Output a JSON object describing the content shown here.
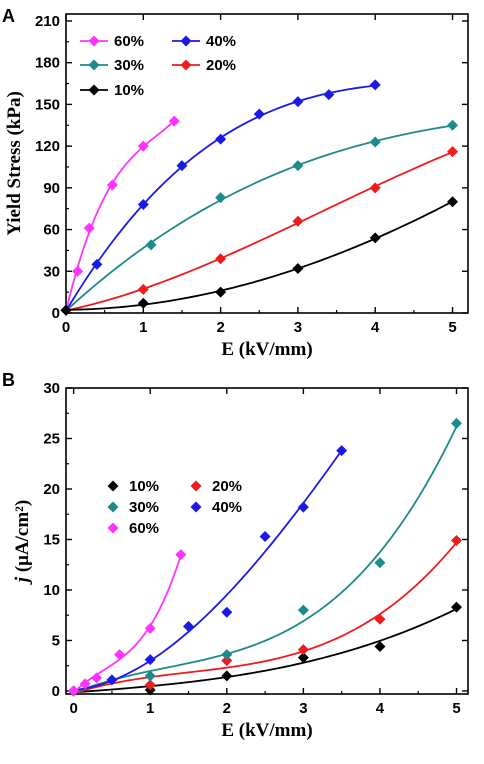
{
  "chart_data": [
    {
      "type": "scatter",
      "panel_label": "A",
      "xlabel": "E (kV/mm)",
      "ylabel": "Yield Stress (kPa)",
      "xlim": [
        0,
        5.2
      ],
      "ylim": [
        0,
        215
      ],
      "xticks": [
        0,
        1,
        2,
        3,
        4,
        5
      ],
      "yticks": [
        0,
        30,
        60,
        90,
        120,
        150,
        180,
        210
      ],
      "legend_placement": "top-left",
      "series": [
        {
          "name": "60%",
          "color": "#ff33ff",
          "x": [
            0,
            0.15,
            0.3,
            0.6,
            1.0,
            1.4
          ],
          "y": [
            2,
            30,
            61,
            92,
            120,
            138
          ]
        },
        {
          "name": "40%",
          "color": "#1a1ae6",
          "x": [
            0,
            0.4,
            1.0,
            1.5,
            2.0,
            2.5,
            3.0,
            3.4,
            4.0
          ],
          "y": [
            2,
            35,
            78,
            106,
            125,
            143,
            152,
            157,
            164
          ]
        },
        {
          "name": "30%",
          "color": "#1f8a8a",
          "x": [
            0,
            1.1,
            2.0,
            3.0,
            4.0,
            5.0
          ],
          "y": [
            2,
            49,
            83,
            106,
            123,
            135
          ]
        },
        {
          "name": "20%",
          "color": "#ee1c1c",
          "x": [
            0,
            1.0,
            2.0,
            3.0,
            4.0,
            5.0
          ],
          "y": [
            2,
            17,
            39,
            66,
            90,
            116
          ]
        },
        {
          "name": "10%",
          "color": "#000000",
          "x": [
            0,
            1.0,
            2.0,
            3.0,
            4.0,
            5.0
          ],
          "y": [
            2,
            7,
            15,
            32,
            54,
            80
          ]
        }
      ]
    },
    {
      "type": "scatter",
      "panel_label": "B",
      "xlabel": "E (kV/mm)",
      "ylabel": "j (μA/cm²)",
      "xlim": [
        -0.1,
        5.15
      ],
      "ylim": [
        -0.3,
        30
      ],
      "xticks": [
        0,
        1,
        2,
        3,
        4,
        5
      ],
      "yticks": [
        0,
        5,
        10,
        15,
        20,
        25,
        30
      ],
      "legend_placement": "center-left",
      "series": [
        {
          "name": "10%",
          "color": "#000000",
          "x": [
            0,
            1.0,
            2.0,
            3.0,
            4.0,
            5.0
          ],
          "y": [
            0,
            0.1,
            1.5,
            3.3,
            4.4,
            8.3
          ]
        },
        {
          "name": "20%",
          "color": "#ee1c1c",
          "x": [
            0,
            1.0,
            2.0,
            3.0,
            4.0,
            5.0
          ],
          "y": [
            0,
            0.6,
            3.0,
            4.1,
            7.1,
            14.9
          ]
        },
        {
          "name": "30%",
          "color": "#1f8a8a",
          "x": [
            0,
            1.0,
            2.0,
            3.0,
            4.0,
            5.0
          ],
          "y": [
            0,
            1.5,
            3.6,
            8.0,
            12.7,
            26.5
          ]
        },
        {
          "name": "40%",
          "color": "#1a1ae6",
          "x": [
            0,
            0.5,
            1.0,
            1.5,
            2.0,
            2.5,
            3.0,
            3.5
          ],
          "y": [
            0,
            1.1,
            3.1,
            6.4,
            7.8,
            15.3,
            18.2,
            23.8
          ]
        },
        {
          "name": "60%",
          "color": "#ff33ff",
          "x": [
            0,
            0.15,
            0.3,
            0.6,
            1.0,
            1.4
          ],
          "y": [
            0,
            0.7,
            1.3,
            3.6,
            6.2,
            13.5
          ]
        }
      ]
    }
  ]
}
